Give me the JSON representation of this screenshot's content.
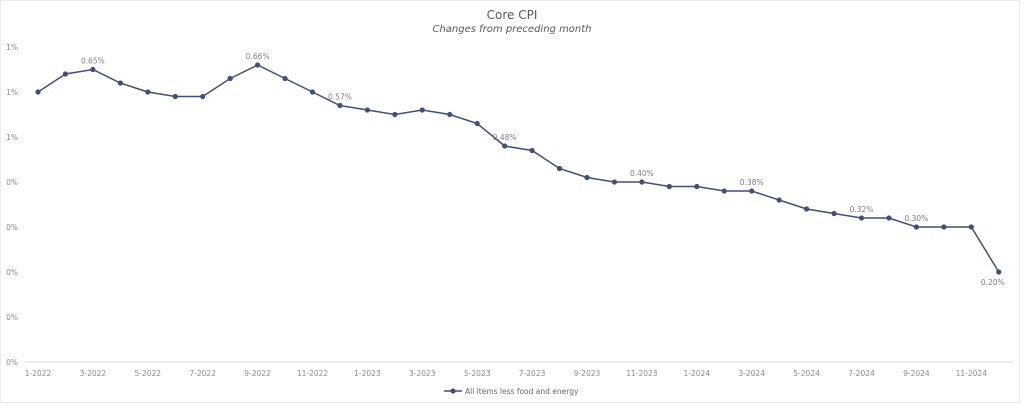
{
  "chart_data": {
    "type": "line",
    "title": "Core CPI",
    "subtitle": "Changes from preceding month",
    "xlabel": "",
    "ylabel": "",
    "ylim": [
      0,
      0.7
    ],
    "yticks": [
      0,
      0.1,
      0.2,
      0.3,
      0.4,
      0.5,
      0.6,
      0.7
    ],
    "ytick_labels": [
      "0%",
      "0%",
      "0%",
      "0%",
      "0%",
      "1%",
      "1%",
      "1%"
    ],
    "grid": false,
    "legend_position": "bottom",
    "x": [
      "1-2022",
      "2-2022",
      "3-2022",
      "4-2022",
      "5-2022",
      "6-2022",
      "7-2022",
      "8-2022",
      "9-2022",
      "10-2022",
      "11-2022",
      "12-2022",
      "1-2023",
      "2-2023",
      "3-2023",
      "4-2023",
      "5-2023",
      "6-2023",
      "7-2023",
      "8-2023",
      "9-2023",
      "10-2023",
      "11-2023",
      "12-2023",
      "1-2024",
      "2-2024",
      "3-2024",
      "4-2024",
      "5-2024",
      "6-2024",
      "7-2024",
      "8-2024",
      "9-2024",
      "10-2024",
      "11-2024",
      "12-2024"
    ],
    "xtick_labels": [
      "1-2022",
      "3-2022",
      "5-2022",
      "7-2022",
      "9-2022",
      "11-2022",
      "1-2023",
      "3-2023",
      "5-2023",
      "7-2023",
      "9-2023",
      "11-2023",
      "1-2024",
      "3-2024",
      "5-2024",
      "7-2024",
      "9-2024",
      "11-2024"
    ],
    "series": [
      {
        "name": "All items less food and energy",
        "color": "#404f7c",
        "values": [
          0.6,
          0.64,
          0.65,
          0.62,
          0.6,
          0.59,
          0.59,
          0.63,
          0.66,
          0.63,
          0.6,
          0.57,
          0.56,
          0.55,
          0.56,
          0.55,
          0.53,
          0.48,
          0.47,
          0.43,
          0.41,
          0.4,
          0.4,
          0.39,
          0.39,
          0.38,
          0.38,
          0.36,
          0.34,
          0.33,
          0.32,
          0.32,
          0.3,
          0.3,
          0.3,
          0.2
        ]
      }
    ],
    "data_labels": [
      {
        "index": 2,
        "text": "0.65%"
      },
      {
        "index": 8,
        "text": "0.66%"
      },
      {
        "index": 11,
        "text": "0.57%"
      },
      {
        "index": 17,
        "text": "0.48%"
      },
      {
        "index": 22,
        "text": "0.40%"
      },
      {
        "index": 26,
        "text": "0.38%"
      },
      {
        "index": 30,
        "text": "0.32%"
      },
      {
        "index": 32,
        "text": "0.30%"
      },
      {
        "index": 35,
        "text": "0.20%",
        "position": "below"
      }
    ]
  }
}
